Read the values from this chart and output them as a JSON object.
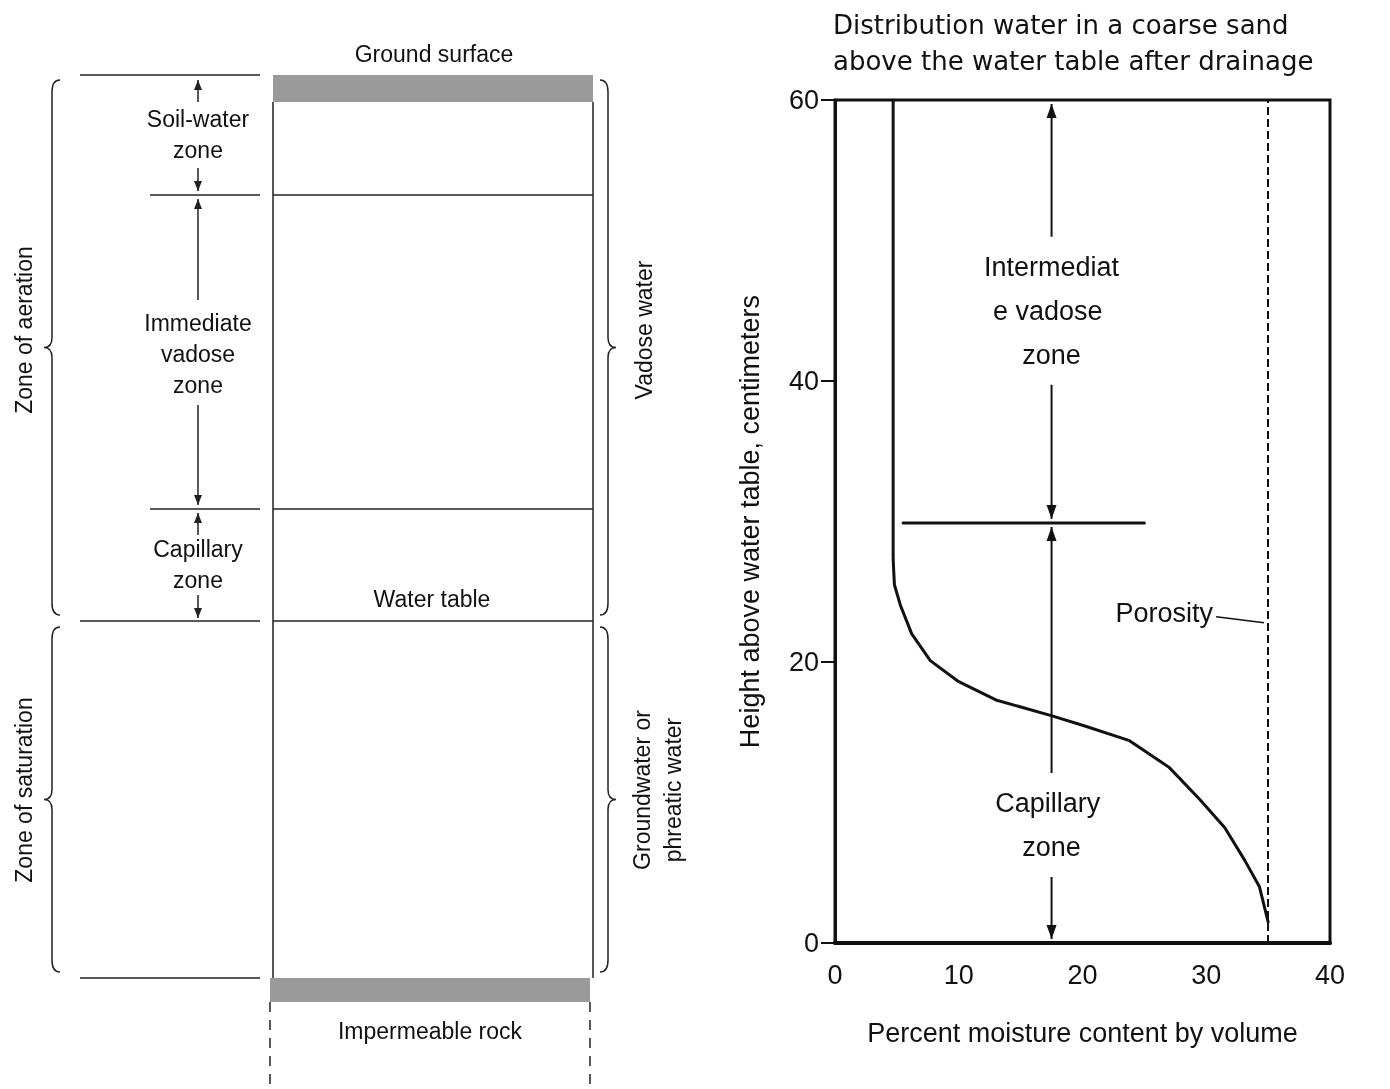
{
  "chart_data": [
    {
      "type": "other",
      "annotations": [
        "Ground surface",
        "Soil-water zone",
        "Immediate vadose zone",
        "Capillary zone",
        "Water table",
        "Impermeable rock",
        "Zone of aeration",
        "Zone of saturation",
        "Vadose water",
        "Groundwater or phreatic water"
      ]
    },
    {
      "type": "line",
      "title": "Distribution water in a coarse sand above the water table after drainage",
      "xlabel": "Percent moisture content by volume",
      "ylabel": "Height above water table, centimeters",
      "xlim": [
        0,
        40
      ],
      "ylim": [
        0,
        60
      ],
      "xticks": [
        0,
        10,
        20,
        30,
        40
      ],
      "yticks": [
        0,
        20,
        40,
        60
      ],
      "grid": false,
      "marker": "none",
      "line_style": "solid",
      "series": [
        {
          "color": "#111111",
          "x": [
            4.7,
            4.7,
            4.8,
            5.3,
            6.2,
            7.7,
            10,
            13,
            17.4,
            20,
            23.8,
            27,
            29.5,
            31.5,
            33.1,
            34.3,
            35
          ],
          "values": [
            60,
            27.3,
            25.5,
            24,
            22,
            20.1,
            18.6,
            17.3,
            16.2,
            15.5,
            14.4,
            12.5,
            10.2,
            8.2,
            5.9,
            4,
            1.5
          ]
        },
        {
          "color": "#111111",
          "x": [
            5.5,
            25
          ],
          "values": [
            29.9,
            29.9
          ]
        }
      ],
      "ref_lines": [
        {
          "axis": "x",
          "value": 35,
          "label": "Porosity",
          "line_style": "dashed",
          "color": "#111111"
        }
      ],
      "annotations": [
        {
          "text": "Intermediate vadose zone",
          "x": 17.5,
          "y": 29.9
        },
        "Capillary zone"
      ]
    }
  ]
}
